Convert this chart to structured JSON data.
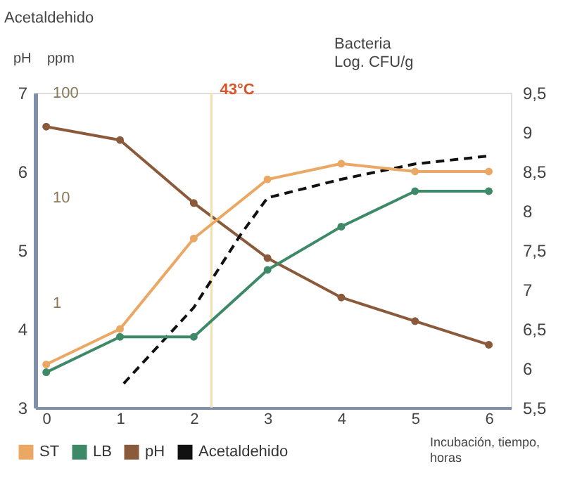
{
  "chart_data": {
    "type": "line",
    "annotations": [
      "Acetaldehido"
    ],
    "xlabel": "Incubación, tiempo, horas",
    "ylabel": "pH",
    "y3label": "ppm",
    "y2label": "Bacteria Log. CFU/g",
    "xlim": [
      -0.15,
      6.3
    ],
    "xticks": [
      0,
      1,
      2,
      3,
      4,
      5,
      6
    ],
    "ylim": [
      3,
      7
    ],
    "yticks": [
      3,
      4,
      5,
      6,
      7
    ],
    "y3lim": [
      0.1,
      100
    ],
    "y3ticks": [
      1,
      10,
      100
    ],
    "log": "y3",
    "y2lim": [
      5.5,
      9.5
    ],
    "y2ticks": [
      {
        "value": 5.5,
        "label": "5,5"
      },
      6,
      {
        "value": 6.5,
        "label": "6,5"
      },
      7,
      {
        "value": 7.5,
        "label": "7,5"
      },
      8,
      {
        "value": 8.5,
        "label": "8,5"
      },
      9,
      {
        "value": 9.5,
        "label": "9,5"
      }
    ],
    "marker": "circle",
    "grid": false,
    "legend": "bottom",
    "ref_lines": [
      {
        "axis": "x",
        "value": 2.24,
        "label": "43°C",
        "color": "#f3e2b0"
      }
    ],
    "series": [
      {
        "name": "ST",
        "color": "#eba865",
        "axis": "y2",
        "x": [
          0,
          1,
          2,
          3,
          4,
          5,
          6
        ],
        "values": [
          6.05,
          6.5,
          7.65,
          8.4,
          8.6,
          8.5,
          8.5
        ]
      },
      {
        "name": "LB",
        "color": "#3e8a68",
        "axis": "y2",
        "x": [
          0,
          1,
          2,
          3,
          4,
          5,
          6
        ],
        "values": [
          5.95,
          6.4,
          6.4,
          7.25,
          7.8,
          8.25,
          8.25
        ]
      },
      {
        "name": "pH",
        "color": "#8a5a3a",
        "axis": "y",
        "x": [
          0,
          1,
          2,
          3,
          4,
          5,
          6
        ],
        "values": [
          6.57,
          6.4,
          5.6,
          4.9,
          4.4,
          4.1,
          3.8
        ]
      },
      {
        "name": "Acetaldehido",
        "color": "#111111",
        "axis": "y3",
        "line_style": "dashed",
        "marker": "none",
        "x": [
          1.05,
          2,
          2.64,
          3,
          4,
          5,
          6
        ],
        "values": [
          0.17,
          0.9,
          4.5,
          10,
          15,
          21,
          25
        ]
      }
    ]
  }
}
